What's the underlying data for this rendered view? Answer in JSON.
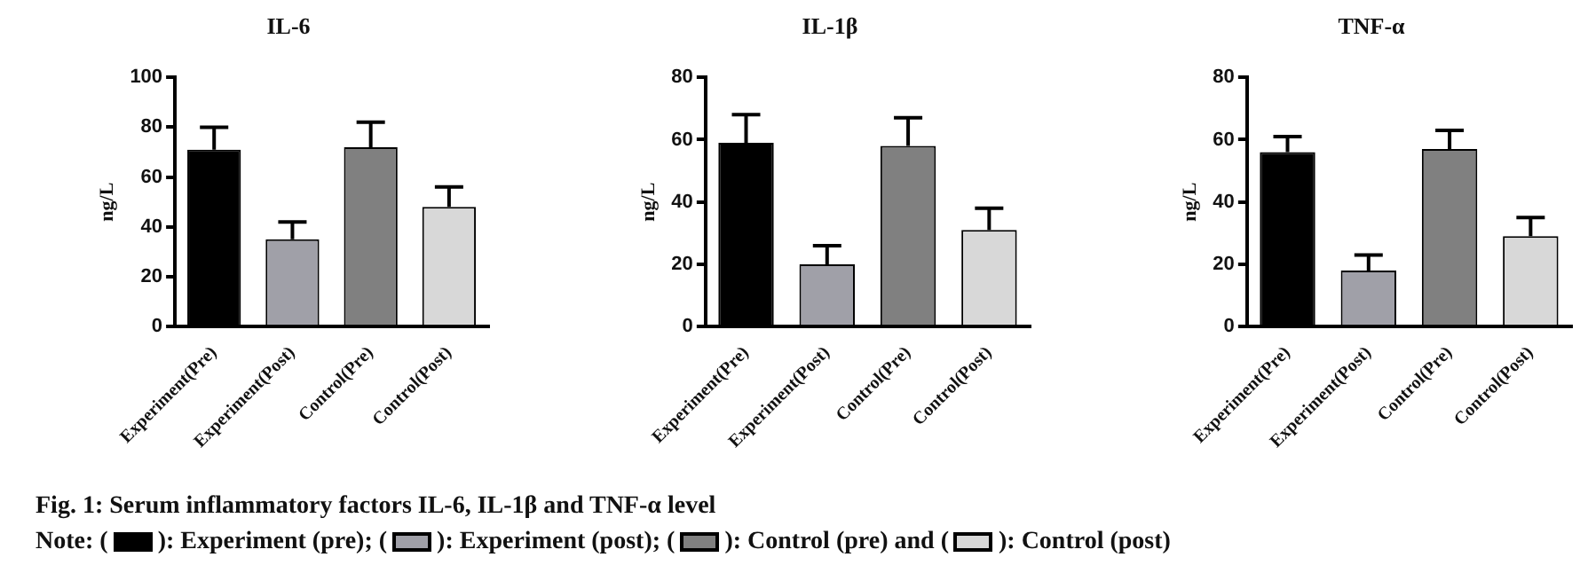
{
  "chart_data": [
    {
      "type": "bar",
      "title": "IL-6",
      "ylabel": "ng/L",
      "categories": [
        "Experiment(Pre)",
        "Experiment(Post)",
        "Control(Pre)",
        "Control(Post)"
      ],
      "values": [
        71,
        35,
        72,
        48
      ],
      "errors": [
        [
          71,
          80
        ],
        [
          35,
          42
        ],
        [
          72,
          82
        ],
        [
          48,
          56
        ]
      ],
      "colors": [
        "#000000",
        "#a0a0a8",
        "#808080",
        "#d8d8d8"
      ],
      "ylim": [
        0,
        100
      ],
      "yticks": [
        0,
        20,
        40,
        60,
        80,
        100
      ],
      "grid": false,
      "legend": false,
      "annotations": [
        "Fig. 1: Serum inflammatory factors IL-6, IL-1β and TNF-α level",
        "Note: ( ): Experiment (pre); ( ): Experiment (post); ( ): Control (pre) and ( ): Control (post)"
      ]
    },
    {
      "type": "bar",
      "title": "IL-1β",
      "ylabel": "ng/L",
      "categories": [
        "Experiment(Pre)",
        "Experiment(Post)",
        "Control(Pre)",
        "Control(Post)"
      ],
      "values": [
        59,
        20,
        58,
        31
      ],
      "errors": [
        [
          59,
          68
        ],
        [
          20,
          26
        ],
        [
          58,
          67
        ],
        [
          31,
          38
        ]
      ],
      "colors": [
        "#000000",
        "#a0a0a8",
        "#808080",
        "#d8d8d8"
      ],
      "ylim": [
        0,
        80
      ],
      "yticks": [
        0,
        20,
        40,
        60,
        80
      ],
      "grid": false,
      "legend": false
    },
    {
      "type": "bar",
      "title": "TNF-α",
      "ylabel": "ng/L",
      "categories": [
        "Experiment(Pre)",
        "Experiment(Post)",
        "Control(Pre)",
        "Control(Post)"
      ],
      "values": [
        56,
        18,
        57,
        29
      ],
      "errors": [
        [
          56,
          61
        ],
        [
          18,
          23
        ],
        [
          57,
          63
        ],
        [
          29,
          35
        ]
      ],
      "colors": [
        "#000000",
        "#a0a0a8",
        "#808080",
        "#d8d8d8"
      ],
      "ylim": [
        0,
        80
      ],
      "yticks": [
        0,
        20,
        40,
        60,
        80
      ],
      "grid": false,
      "legend": false
    }
  ]
}
